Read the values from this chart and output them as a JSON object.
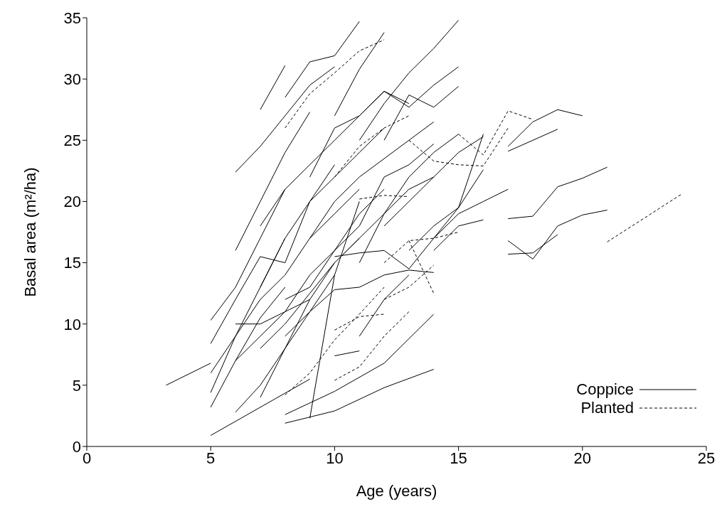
{
  "chart_data": {
    "type": "line",
    "xlabel": "Age (years)",
    "ylabel": "Basal area (m²/ha)",
    "xlim": [
      0,
      25
    ],
    "xticks": [
      0,
      5,
      10,
      15,
      20,
      25
    ],
    "ylim": [
      0,
      35
    ],
    "yticks": [
      0,
      5,
      10,
      15,
      20,
      25,
      30,
      35
    ],
    "grid": false,
    "legend": "bottom right",
    "marker": "none",
    "series": [
      {
        "name": "Coppice",
        "color": "#000000",
        "line_style": "solid",
        "x": [
          3.2,
          5
        ],
        "values": [
          5.0,
          6.8
        ]
      },
      {
        "color": "#000000",
        "line_style": "solid",
        "x": [
          5,
          7,
          9
        ],
        "values": [
          0.9,
          3.2,
          5.5
        ]
      },
      {
        "color": "#000000",
        "line_style": "solid",
        "x": [
          8,
          10,
          12,
          14
        ],
        "values": [
          1.9,
          2.9,
          4.8,
          6.3
        ]
      },
      {
        "color": "#000000",
        "line_style": "solid",
        "x": [
          8,
          10,
          12,
          14
        ],
        "values": [
          2.6,
          4.5,
          6.8,
          10.8
        ]
      },
      {
        "color": "#000000",
        "line_style": "solid",
        "x": [
          5,
          6,
          7,
          8
        ],
        "values": [
          3.2,
          7,
          10.5,
          13
        ]
      },
      {
        "color": "#000000",
        "line_style": "solid",
        "x": [
          5,
          6,
          7,
          8
        ],
        "values": [
          4.4,
          9,
          13,
          17
        ]
      },
      {
        "color": "#000000",
        "line_style": "solid",
        "x": [
          5,
          6,
          7,
          8
        ],
        "values": [
          8.4,
          12,
          15.5,
          15
        ]
      },
      {
        "color": "#000000",
        "line_style": "solid",
        "x": [
          5,
          6,
          7,
          8
        ],
        "values": [
          10.3,
          13,
          17,
          21
        ]
      },
      {
        "color": "#000000",
        "line_style": "solid",
        "x": [
          6,
          7,
          8,
          9
        ],
        "values": [
          16,
          20,
          24,
          27.3
        ]
      },
      {
        "color": "#000000",
        "line_style": "solid",
        "x": [
          6,
          7,
          8,
          9,
          10
        ],
        "values": [
          22.4,
          24.5,
          27,
          29.5,
          31
        ]
      },
      {
        "color": "#000000",
        "line_style": "solid",
        "x": [
          7,
          8
        ],
        "values": [
          27.5,
          31.1
        ]
      },
      {
        "color": "#000000",
        "line_style": "solid",
        "x": [
          8,
          9,
          10,
          11
        ],
        "values": [
          28.5,
          31.4,
          31.9,
          34.7
        ]
      },
      {
        "color": "#000000",
        "line_style": "solid",
        "x": [
          6,
          7,
          8,
          9,
          10
        ],
        "values": [
          2.8,
          5,
          8,
          11,
          14
        ]
      },
      {
        "color": "#000000",
        "line_style": "solid",
        "x": [
          7,
          8,
          9,
          10,
          11
        ],
        "values": [
          4,
          8,
          12,
          15,
          17
        ]
      },
      {
        "color": "#000000",
        "line_style": "solid",
        "x": [
          7,
          8,
          9,
          10,
          11,
          12,
          13,
          14
        ],
        "values": [
          8,
          10,
          12.5,
          15,
          17,
          19,
          21,
          22
        ]
      },
      {
        "color": "#000000",
        "line_style": "solid",
        "x": [
          9,
          10,
          11
        ],
        "values": [
          2.3,
          14,
          20
        ]
      },
      {
        "color": "#000000",
        "line_style": "solid",
        "x": [
          8,
          9,
          10,
          11,
          12,
          13,
          14
        ],
        "values": [
          9,
          11,
          12.8,
          13,
          14,
          14.4,
          14.2
        ]
      },
      {
        "color": "#000000",
        "line_style": "solid",
        "x": [
          10,
          11
        ],
        "values": [
          7.4,
          7.8
        ]
      },
      {
        "color": "#000000",
        "line_style": "solid",
        "x": [
          6,
          7,
          8,
          9
        ],
        "values": [
          10,
          10,
          11,
          12
        ]
      },
      {
        "color": "#000000",
        "line_style": "solid",
        "x": [
          9,
          10,
          11,
          12,
          13,
          14,
          15
        ],
        "values": [
          22,
          26,
          27,
          29,
          27.7,
          29.5,
          31
        ]
      },
      {
        "color": "#000000",
        "line_style": "solid",
        "x": [
          10,
          11,
          12
        ],
        "values": [
          27,
          30.8,
          33.8
        ]
      },
      {
        "color": "#000000",
        "line_style": "solid",
        "x": [
          11,
          12,
          13,
          14,
          15
        ],
        "values": [
          25,
          28,
          30.5,
          32.5,
          34.8
        ]
      },
      {
        "color": "#000000",
        "line_style": "solid",
        "x": [
          12,
          13,
          14,
          15
        ],
        "values": [
          25,
          28.7,
          27.7,
          29.4
        ]
      },
      {
        "color": "#000000",
        "line_style": "solid",
        "x": [
          10,
          11,
          12,
          13,
          14,
          15,
          16
        ],
        "values": [
          15.5,
          15.8,
          16,
          14.5,
          17,
          19.5,
          25.5
        ]
      },
      {
        "color": "#000000",
        "line_style": "solid",
        "x": [
          11,
          12,
          13,
          14,
          15
        ],
        "values": [
          15,
          19,
          22,
          24,
          25.5
        ]
      },
      {
        "color": "#000000",
        "line_style": "solid",
        "x": [
          12,
          13,
          14,
          15,
          16
        ],
        "values": [
          18,
          20,
          22,
          24,
          25.3
        ]
      },
      {
        "color": "#000000",
        "line_style": "solid",
        "x": [
          13,
          14,
          15,
          16
        ],
        "values": [
          16,
          18,
          19.5,
          22.6
        ]
      },
      {
        "color": "#000000",
        "line_style": "solid",
        "x": [
          14,
          15,
          16
        ],
        "values": [
          16,
          18,
          18.5
        ]
      },
      {
        "color": "#000000",
        "line_style": "solid",
        "x": [
          14,
          15,
          16,
          17
        ],
        "values": [
          17,
          19,
          20,
          21
        ]
      },
      {
        "color": "#000000",
        "line_style": "solid",
        "x": [
          8,
          9,
          10,
          11,
          12,
          13,
          14
        ],
        "values": [
          12,
          13,
          16,
          18,
          22,
          23,
          24.7
        ]
      },
      {
        "color": "#000000",
        "line_style": "solid",
        "x": [
          7,
          8,
          9,
          10,
          11,
          12,
          13
        ],
        "values": [
          18,
          21,
          23,
          25,
          27,
          29,
          28
        ]
      },
      {
        "color": "#000000",
        "line_style": "solid",
        "x": [
          8,
          9,
          10
        ],
        "values": [
          15,
          20,
          23
        ]
      },
      {
        "color": "#000000",
        "line_style": "solid",
        "x": [
          17,
          18,
          19,
          20
        ],
        "values": [
          24.5,
          26.5,
          27.5,
          27
        ]
      },
      {
        "color": "#000000",
        "line_style": "solid",
        "x": [
          17,
          18,
          19
        ],
        "values": [
          24.1,
          25,
          25.9
        ]
      },
      {
        "color": "#000000",
        "line_style": "solid",
        "x": [
          17,
          18,
          19,
          20,
          21
        ],
        "values": [
          18.6,
          18.8,
          21.2,
          21.9,
          22.8
        ]
      },
      {
        "color": "#000000",
        "line_style": "solid",
        "x": [
          17,
          18,
          19,
          20,
          21
        ],
        "values": [
          16.8,
          15.3,
          18,
          18.9,
          19.3
        ]
      },
      {
        "color": "#000000",
        "line_style": "solid",
        "x": [
          17,
          18,
          19
        ],
        "values": [
          15.7,
          15.8,
          17.3
        ]
      },
      {
        "color": "#000000",
        "line_style": "solid",
        "x": [
          6,
          7,
          8,
          9,
          10,
          11,
          12
        ],
        "values": [
          7,
          9,
          11,
          14,
          16,
          19,
          21
        ]
      },
      {
        "color": "#000000",
        "line_style": "solid",
        "x": [
          5,
          6,
          7,
          8,
          9,
          10,
          11
        ],
        "values": [
          6,
          9,
          12,
          14,
          17,
          19,
          21
        ]
      },
      {
        "color": "#000000",
        "line_style": "solid",
        "x": [
          7,
          8,
          9,
          10,
          11,
          12
        ],
        "values": [
          13,
          17,
          20,
          22,
          24,
          26
        ]
      },
      {
        "color": "#000000",
        "line_style": "solid",
        "x": [
          9,
          10,
          11,
          12,
          13,
          14
        ],
        "values": [
          17,
          20,
          22,
          23.5,
          25,
          26.5
        ]
      },
      {
        "color": "#000000",
        "line_style": "solid",
        "x": [
          11,
          12,
          13
        ],
        "values": [
          9,
          12,
          14
        ]
      },
      {
        "name": "Planted",
        "color": "#000000",
        "line_style": "dashed",
        "x": [
          21,
          22,
          23,
          24
        ],
        "values": [
          16.7,
          18,
          19.3,
          20.6
        ]
      },
      {
        "color": "#000000",
        "line_style": "dashed",
        "x": [
          15,
          16,
          17,
          18
        ],
        "values": [
          25.5,
          23.8,
          27.4,
          26.7
        ]
      },
      {
        "color": "#000000",
        "line_style": "dashed",
        "x": [
          13,
          14,
          15,
          16,
          17
        ],
        "values": [
          25,
          23.3,
          23,
          22.9,
          26
        ]
      },
      {
        "color": "#000000",
        "line_style": "dashed",
        "x": [
          8,
          9,
          10,
          11,
          12
        ],
        "values": [
          4.2,
          6,
          8.7,
          10.8,
          13
        ]
      },
      {
        "color": "#000000",
        "line_style": "dashed",
        "x": [
          10,
          11,
          12,
          13
        ],
        "values": [
          5.4,
          6.5,
          9,
          11
        ]
      },
      {
        "color": "#000000",
        "line_style": "dashed",
        "x": [
          10,
          11,
          12
        ],
        "values": [
          9.5,
          10.6,
          10.8
        ]
      },
      {
        "color": "#000000",
        "line_style": "dashed",
        "x": [
          8,
          9,
          10,
          11,
          12
        ],
        "values": [
          26,
          28.8,
          30.5,
          32.3,
          33.2
        ]
      },
      {
        "color": "#000000",
        "line_style": "dashed",
        "x": [
          10,
          11,
          12,
          13
        ],
        "values": [
          22,
          24.5,
          26,
          27
        ]
      },
      {
        "color": "#000000",
        "line_style": "dashed",
        "x": [
          11,
          12,
          13
        ],
        "values": [
          20.2,
          20.5,
          20.4
        ]
      },
      {
        "color": "#000000",
        "line_style": "dashed",
        "x": [
          13,
          14
        ],
        "values": [
          16.8,
          12.5
        ]
      },
      {
        "color": "#000000",
        "line_style": "dashed",
        "x": [
          12,
          13,
          14,
          15
        ],
        "values": [
          15,
          16.8,
          17,
          17.5
        ]
      },
      {
        "color": "#000000",
        "line_style": "dashed",
        "x": [
          12,
          13,
          14
        ],
        "values": [
          12,
          13,
          14.8
        ]
      }
    ]
  }
}
